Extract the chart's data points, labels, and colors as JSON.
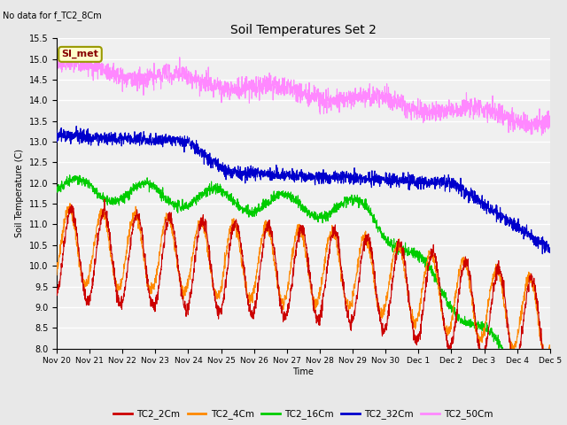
{
  "title": "Soil Temperatures Set 2",
  "subtitle": "No data for f_TC2_8Cm",
  "xlabel": "Time",
  "ylabel": "Soil Temperature (C)",
  "ylim": [
    8.0,
    15.5
  ],
  "yticks": [
    8.0,
    8.5,
    9.0,
    9.5,
    10.0,
    10.5,
    11.0,
    11.5,
    12.0,
    12.5,
    13.0,
    13.5,
    14.0,
    14.5,
    15.0,
    15.5
  ],
  "xtick_labels": [
    "Nov 20",
    "Nov 21",
    "Nov 22",
    "Nov 23",
    "Nov 24",
    "Nov 25",
    "Nov 26",
    "Nov 27",
    "Nov 28",
    "Nov 29",
    "Nov 30",
    "Dec 1",
    "Dec 2",
    "Dec 3",
    "Dec 4",
    "Dec 5"
  ],
  "series_colors": {
    "TC2_2Cm": "#cc0000",
    "TC2_4Cm": "#ff8800",
    "TC2_16Cm": "#00cc00",
    "TC2_32Cm": "#0000cc",
    "TC2_50Cm": "#ff88ff"
  },
  "legend_labels": [
    "TC2_2Cm",
    "TC2_4Cm",
    "TC2_16Cm",
    "TC2_32Cm",
    "TC2_50Cm"
  ],
  "annotation_text": "SI_met",
  "bg_color": "#e8e8e8",
  "plot_bg_color": "#f0f0f0",
  "grid_color": "#ffffff",
  "n_points": 2160
}
